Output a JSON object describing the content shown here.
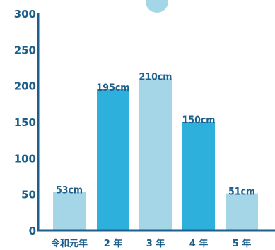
{
  "chart_data": {
    "type": "bar",
    "categories": [
      "令和元年",
      "2 年",
      "3 年",
      "4 年",
      "5 年"
    ],
    "values": [
      53,
      195,
      210,
      150,
      51
    ],
    "data_labels": [
      "53cm",
      "195cm",
      "210cm",
      "150cm",
      "51cm"
    ],
    "title": "",
    "xlabel": "",
    "ylabel": "",
    "ylim": [
      0,
      300
    ],
    "yticks": [
      "0",
      "50",
      "100",
      "150",
      "200",
      "250",
      "300"
    ],
    "grid": false,
    "legend": "top-center"
  },
  "colors": {
    "axis": "#1d5f8a",
    "text": "#1d5f8a",
    "bar_light": "#a5d6e8",
    "bar_dark": "#2eb0dc",
    "data_label": "#1d5f8a",
    "legend_dot": "#a5d6e8"
  },
  "bar_color_pattern": [
    "bar_light",
    "bar_dark",
    "bar_light",
    "bar_dark",
    "bar_light"
  ]
}
